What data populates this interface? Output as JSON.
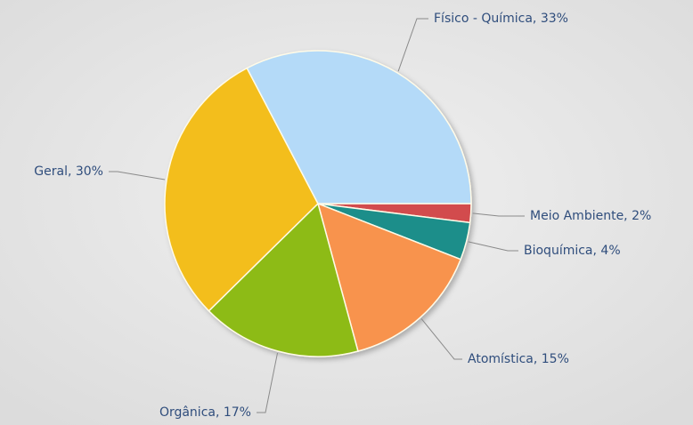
{
  "chart_data": {
    "type": "pie",
    "categories": [
      "Meio Ambiente",
      "Bioquímica",
      "Atomística",
      "Orgânica",
      "Geral",
      "Físico - Química"
    ],
    "values": [
      2,
      4,
      15,
      17,
      30,
      33
    ],
    "value_labels": [
      "Meio Ambiente, 2%",
      "Bioquímica, 4%",
      "Atomística, 15%",
      "Orgânica, 17%",
      "Geral, 30%",
      "Físico - Química, 33%"
    ],
    "colors": [
      "#d24b4e",
      "#1b8e8a",
      "#f8934d",
      "#8dbb13",
      "#f3be1f",
      "#b4daf8"
    ]
  }
}
